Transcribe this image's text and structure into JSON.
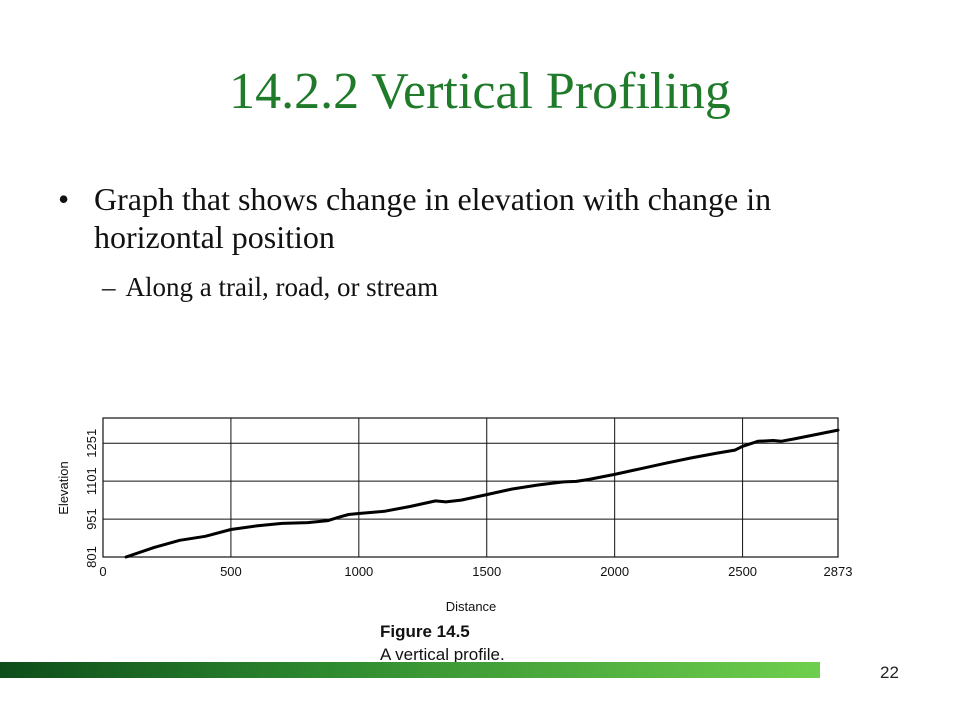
{
  "slide": {
    "title": "14.2.2 Vertical Profiling",
    "bullet": "Graph that shows change in elevation with change in horizontal position",
    "bullet_marker": "•",
    "sub_bullet": "Along a trail, road, or stream",
    "sub_marker": "–",
    "page_number": "22",
    "title_color": "#1f7a2a"
  },
  "figure": {
    "caption_title": "Figure 14.5",
    "caption_text": "A vertical profile."
  },
  "chart_data": {
    "type": "line",
    "xlabel": "Distance",
    "ylabel": "Elevation",
    "x_ticks": [
      0,
      500,
      1000,
      1500,
      2000,
      2500,
      2873
    ],
    "y_ticks": [
      801,
      951,
      1101,
      1251
    ],
    "xlim": [
      0,
      2873
    ],
    "ylim": [
      801,
      1351
    ],
    "grid": true,
    "series": [
      {
        "x": [
          90,
          200,
          300,
          400,
          500,
          600,
          700,
          800,
          880,
          920,
          960,
          1000,
          1100,
          1200,
          1300,
          1340,
          1400,
          1500,
          1600,
          1700,
          1800,
          1850,
          1900,
          2000,
          2100,
          2200,
          2300,
          2400,
          2470,
          2500,
          2560,
          2620,
          2650,
          2700,
          2800,
          2873
        ],
        "y": [
          801,
          839,
          867,
          883,
          910,
          924,
          934,
          937,
          945,
          958,
          969,
          973,
          982,
          1001,
          1023,
          1019,
          1026,
          1048,
          1070,
          1086,
          1098,
          1100,
          1108,
          1128,
          1150,
          1172,
          1193,
          1212,
          1224,
          1239,
          1259,
          1262,
          1259,
          1268,
          1288,
          1303
        ]
      }
    ]
  }
}
